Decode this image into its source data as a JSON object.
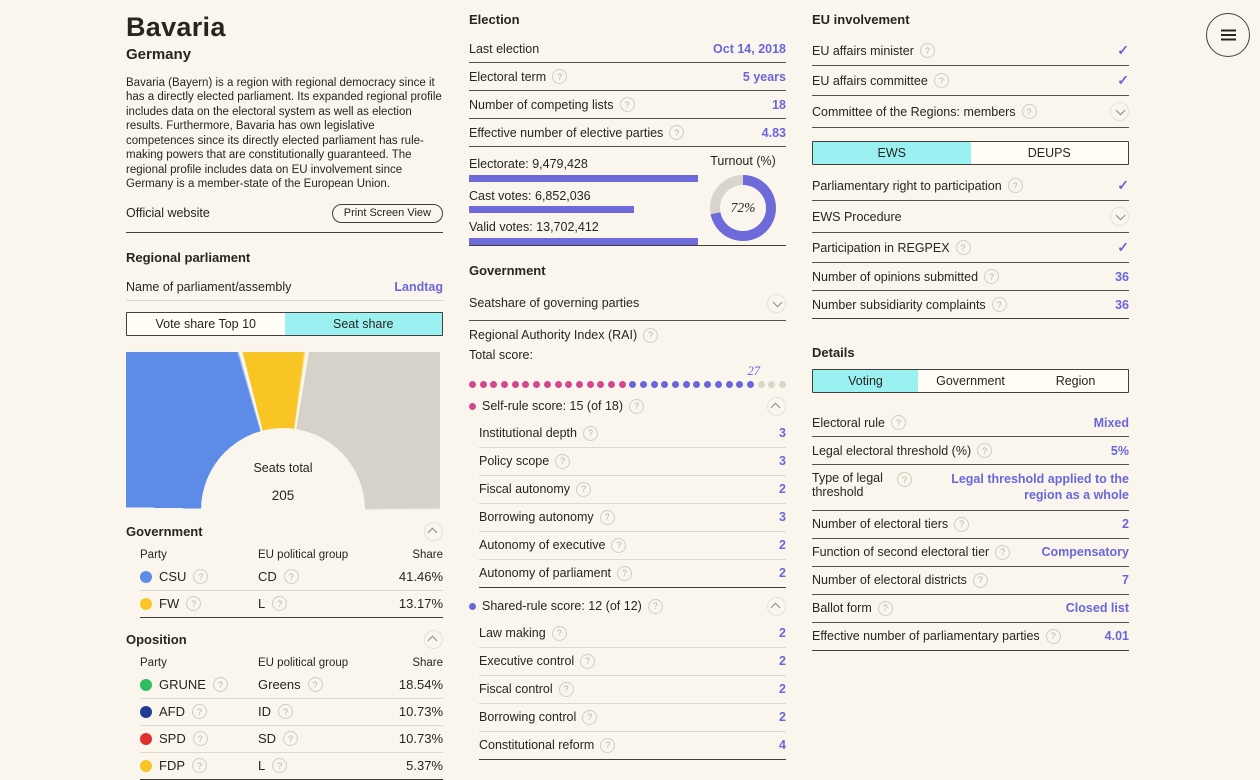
{
  "profile": {
    "title": "Bavaria",
    "subtitle": "Germany",
    "description": "Bavaria (Bayern) is a region with regional democracy since it has a directly elected parliament. Its expanded regional profile includes data on the electoral system as well as election results. Furthermore, Bavaria has own legislative competences since its directly elected parliament has rule-making powers that are constitutionally guaranteed. The regional profile includes data on EU involvement since Germany is a member-state of the European Union.",
    "website_link": "Official website",
    "print_button": "Print Screen View"
  },
  "regional_parliament": {
    "heading": "Regional parliament",
    "name_label": "Name of parliament/assembly",
    "name_value": "Landtag",
    "share_toggle": {
      "options": [
        "Vote share Top 10",
        "Seat share"
      ],
      "selected": "Seat share"
    },
    "seats_total_label": "Seats total",
    "seats_total": "205",
    "government_table": {
      "heading": "Government",
      "columns": [
        "Party",
        "EU political group",
        "Share"
      ],
      "rows": [
        {
          "party": "CSU",
          "color": "#5c8be8",
          "group": "CD",
          "share": "41.46%"
        },
        {
          "party": "FW",
          "color": "#f9c525",
          "group": "L",
          "share": "13.17%"
        }
      ]
    },
    "opposition_table": {
      "heading": "Oposition",
      "columns": [
        "Party",
        "EU political group",
        "Share"
      ],
      "rows": [
        {
          "party": "GRUNE",
          "color": "#2fbd5d",
          "group": "Greens",
          "share": "18.54%"
        },
        {
          "party": "AFD",
          "color": "#1e3e92",
          "group": "ID",
          "share": "10.73%"
        },
        {
          "party": "SPD",
          "color": "#e0312e",
          "group": "SD",
          "share": "10.73%"
        },
        {
          "party": "FDP",
          "color": "#f9c525",
          "group": "L",
          "share": "5.37%"
        }
      ]
    }
  },
  "election": {
    "heading": "Election",
    "rows": [
      {
        "label": "Last election",
        "value": "Oct 14, 2018"
      },
      {
        "label": "Electoral term",
        "value": "5 years"
      },
      {
        "label": "Number of competing lists",
        "value": "18"
      },
      {
        "label": "Effective number of elective parties",
        "value": "4.83"
      }
    ],
    "bars": [
      {
        "label": "Electorate: 9,479,428",
        "pct": 100
      },
      {
        "label": "Cast votes: 6,852,036",
        "pct": 72
      },
      {
        "label": "Valid votes: 13,702,412",
        "pct": 100
      }
    ],
    "turnout_label": "Turnout (%)",
    "turnout_value": "72%"
  },
  "government": {
    "heading": "Government",
    "seatshare_label": "Seatshare of governing parties",
    "rai_label": "Regional Authority Index (RAI)",
    "total_score_label": "Total score:",
    "total_score": "27",
    "self_rule": {
      "label": "Self-rule score: 15 (of 18)",
      "bullet_color": "#d6478f",
      "items": [
        {
          "label": "Institutional depth",
          "value": "3"
        },
        {
          "label": "Policy scope",
          "value": "3"
        },
        {
          "label": "Fiscal autonomy",
          "value": "2"
        },
        {
          "label": "Borrowing autonomy",
          "value": "3"
        },
        {
          "label": "Autonomy of executive",
          "value": "2"
        },
        {
          "label": "Autonomy of parliament",
          "value": "2"
        }
      ]
    },
    "shared_rule": {
      "label": "Shared-rule score: 12 (of 12)",
      "bullet_color": "#6b66d9",
      "items": [
        {
          "label": "Law making",
          "value": "2"
        },
        {
          "label": "Executive control",
          "value": "2"
        },
        {
          "label": "Fiscal control",
          "value": "2"
        },
        {
          "label": "Borrowing control",
          "value": "2"
        },
        {
          "label": "Constitutional reform",
          "value": "4"
        }
      ]
    }
  },
  "eu_involvement": {
    "heading": "EU involvement",
    "minister_row": {
      "label": "EU affairs minister"
    },
    "committee_row": {
      "label": "EU affairs committee"
    },
    "cor_row": {
      "label": "Committee of the Regions: members"
    },
    "procedure_toggle": {
      "options": [
        "EWS",
        "DEUPS"
      ],
      "selected": "EWS"
    },
    "participation_row": {
      "label": "Parliamentary right to participation"
    },
    "ews_procedure_row": {
      "label": "EWS Procedure"
    },
    "regpex_row": {
      "label": "Participation in REGPEX"
    },
    "opinions_row": {
      "label": "Number of opinions submitted",
      "value": "36"
    },
    "complaints_row": {
      "label": "Number subsidiarity complaints",
      "value": "36"
    }
  },
  "details": {
    "heading": "Details",
    "tabs": [
      "Voting",
      "Government",
      "Region"
    ],
    "selected_tab": "Voting",
    "rows": [
      {
        "label": "Electoral rule",
        "value": "Mixed"
      },
      {
        "label": "Legal electoral threshold (%)",
        "value": "5%"
      },
      {
        "label": "Type of legal threshold",
        "value": "Legal threshold applied to the region as a whole"
      },
      {
        "label": "Number of electoral tiers",
        "value": "2"
      },
      {
        "label": "Function of second electoral tier",
        "value": "Compensatory"
      },
      {
        "label": "Number of electoral districts",
        "value": "7"
      },
      {
        "label": "Ballot form",
        "value": "Closed list"
      },
      {
        "label": "Effective number of parliamentary parties",
        "value": "4.01"
      }
    ]
  },
  "colors": {
    "background": "#faf6ed",
    "accent_purple": "#6b66d9",
    "selected_cyan": "#9bf0f1",
    "bar_purple": "#6f6ad9",
    "ring_gray": "#d9d5cc"
  },
  "chart_data": [
    {
      "type": "pie",
      "name": "seat-share-half-donut",
      "title": "Seats total",
      "center_value": 205,
      "categories": [
        "CSU",
        "FW",
        "Opposition"
      ],
      "values": [
        41.46,
        13.17,
        45.37
      ],
      "colors": [
        "#5c8be8",
        "#f9c525",
        "#d6d2c9"
      ],
      "unit": "percent of seats",
      "layout": "half-donut, flat side down"
    },
    {
      "type": "pie",
      "name": "turnout-ring",
      "title": "Turnout (%)",
      "categories": [
        "Turnout",
        "Remainder"
      ],
      "values": [
        72,
        28
      ],
      "colors": [
        "#6f6ad9",
        "#d9d5cc"
      ],
      "center_label": "72%"
    },
    {
      "type": "bar",
      "name": "votes-bars",
      "categories": [
        "Electorate",
        "Cast votes",
        "Valid votes"
      ],
      "values": [
        9479428,
        6852036,
        13702412
      ],
      "bar_pcts": [
        100,
        72,
        100
      ],
      "color": "#6f6ad9",
      "orientation": "horizontal"
    },
    {
      "type": "dots",
      "name": "rai-total-score",
      "title": "Total score:",
      "score": 27,
      "max": 30,
      "self_rule_filled": 15,
      "shared_rule_filled": 12,
      "empty": 3,
      "colors": {
        "self": "#d6478f",
        "shared": "#6b66d9",
        "empty": "#dbd6c9"
      }
    }
  ]
}
